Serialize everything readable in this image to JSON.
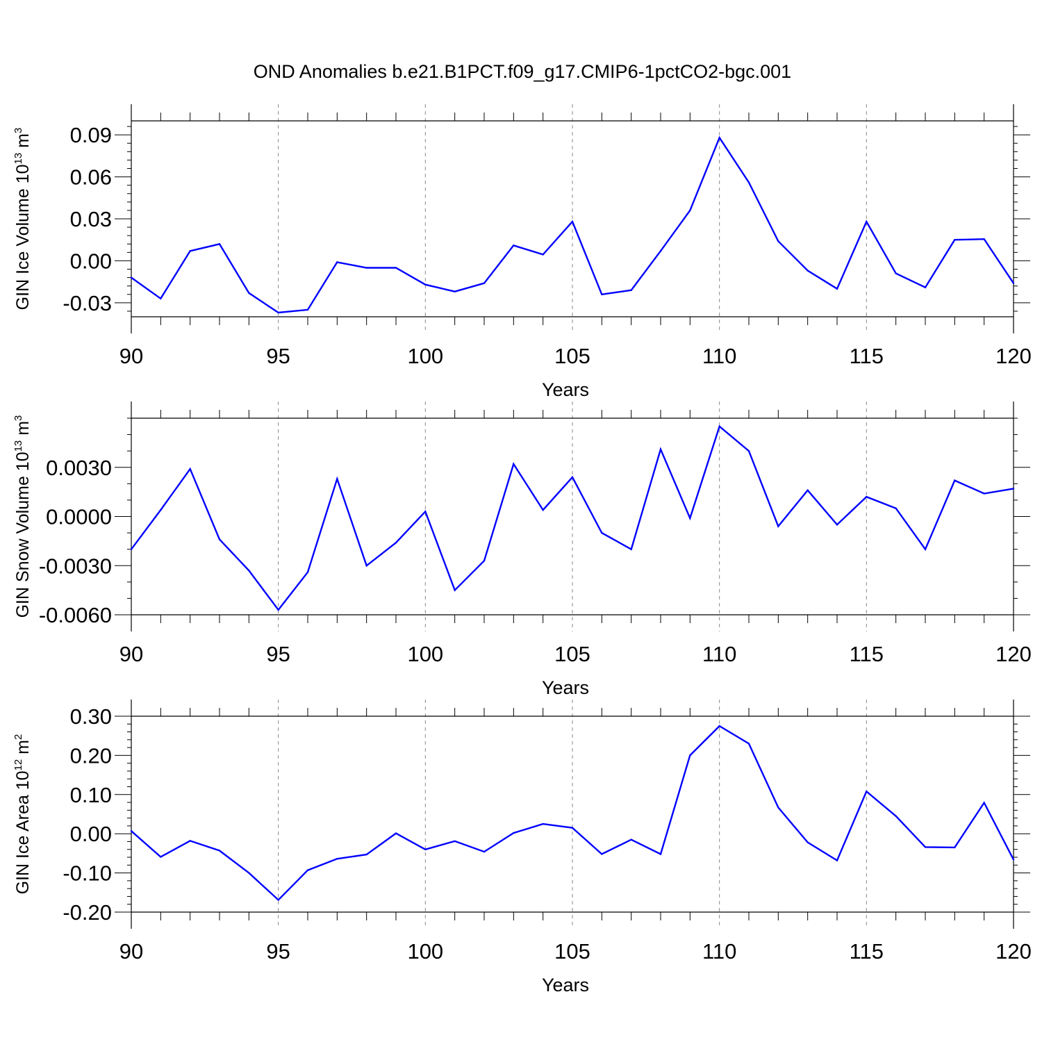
{
  "chart_data": {
    "type": "line",
    "title": "OND Anomalies b.e21.B1PCT.f09_g17.CMIP6-1pctCO2-bgc.001",
    "line_color": "#0000ff",
    "panels": [
      {
        "ylabel_main": "GIN Ice Volume 10",
        "ylabel_exp": "13",
        "ylabel_unit": " m",
        "ylabel_unit_exp": "3",
        "xlabel": "Years",
        "xlim": [
          90,
          120
        ],
        "ylim": [
          -0.04,
          0.1
        ],
        "yticks": [
          -0.03,
          0.0,
          0.03,
          0.06,
          0.09
        ],
        "ytick_labels": [
          "-0.03",
          "0.00",
          "0.03",
          "0.06",
          "0.09"
        ],
        "yminor_step": 0.006,
        "xticks": [
          90,
          95,
          100,
          105,
          110,
          115,
          120
        ],
        "xtick_labels": [
          "90",
          "95",
          "100",
          "105",
          "110",
          "115",
          "120"
        ],
        "x": [
          90,
          91,
          92,
          93,
          94,
          95,
          96,
          97,
          98,
          99,
          100,
          101,
          102,
          103,
          104,
          105,
          106,
          107,
          108,
          109,
          110,
          111,
          112,
          113,
          114,
          115,
          116,
          117,
          118,
          119,
          120
        ],
        "values": [
          -0.012,
          -0.027,
          0.007,
          0.012,
          -0.023,
          -0.037,
          -0.035,
          -0.001,
          -0.005,
          -0.005,
          -0.017,
          -0.022,
          -0.016,
          0.011,
          0.0045,
          0.028,
          -0.024,
          -0.021,
          0.007,
          0.036,
          0.088,
          0.056,
          0.014,
          -0.007,
          -0.02,
          0.028,
          -0.009,
          -0.019,
          0.015,
          0.0155,
          -0.016
        ]
      },
      {
        "ylabel_main": "GIN Snow Volume 10",
        "ylabel_exp": "13",
        "ylabel_unit": " m",
        "ylabel_unit_exp": "3",
        "xlabel": "Years",
        "xlim": [
          90,
          120
        ],
        "ylim": [
          -0.006,
          0.006
        ],
        "yticks": [
          -0.006,
          -0.003,
          0.0,
          0.003
        ],
        "ytick_labels": [
          "-0.0060",
          "-0.0030",
          "0.0000",
          "0.0030"
        ],
        "yminor_step": 0.001,
        "xticks": [
          90,
          95,
          100,
          105,
          110,
          115,
          120
        ],
        "xtick_labels": [
          "90",
          "95",
          "100",
          "105",
          "110",
          "115",
          "120"
        ],
        "x": [
          90,
          91,
          92,
          93,
          94,
          95,
          96,
          97,
          98,
          99,
          100,
          101,
          102,
          103,
          104,
          105,
          106,
          107,
          108,
          109,
          110,
          111,
          112,
          113,
          114,
          115,
          116,
          117,
          118,
          119,
          120
        ],
        "values": [
          -0.002,
          0.0004,
          0.0029,
          -0.0014,
          -0.0033,
          -0.0057,
          -0.0034,
          0.0023,
          -0.003,
          -0.0016,
          0.0003,
          -0.0045,
          -0.0027,
          0.0032,
          0.0004,
          0.0024,
          -0.001,
          -0.002,
          0.0041,
          -0.0001,
          0.0055,
          0.004,
          -0.0006,
          0.0016,
          -0.0005,
          0.0012,
          0.0005,
          -0.002,
          0.0022,
          0.0014,
          0.0017
        ]
      },
      {
        "ylabel_main": "GIN Ice Area 10",
        "ylabel_exp": "12",
        "ylabel_unit": " m",
        "ylabel_unit_exp": "2",
        "xlabel": "Years",
        "xlim": [
          90,
          120
        ],
        "ylim": [
          -0.2,
          0.3
        ],
        "yticks": [
          -0.2,
          -0.1,
          0.0,
          0.1,
          0.2,
          0.3
        ],
        "ytick_labels": [
          "-0.20",
          "-0.10",
          "0.00",
          "0.10",
          "0.20",
          "0.30"
        ],
        "yminor_step": 0.02,
        "xticks": [
          90,
          95,
          100,
          105,
          110,
          115,
          120
        ],
        "xtick_labels": [
          "90",
          "95",
          "100",
          "105",
          "110",
          "115",
          "120"
        ],
        "x": [
          90,
          91,
          92,
          93,
          94,
          95,
          96,
          97,
          98,
          99,
          100,
          101,
          102,
          103,
          104,
          105,
          106,
          107,
          108,
          109,
          110,
          111,
          112,
          113,
          114,
          115,
          116,
          117,
          118,
          119,
          120
        ],
        "values": [
          0.007,
          -0.059,
          -0.018,
          -0.043,
          -0.1,
          -0.169,
          -0.093,
          -0.064,
          -0.053,
          0.001,
          -0.04,
          -0.019,
          -0.046,
          0.002,
          0.025,
          0.015,
          -0.052,
          -0.015,
          -0.052,
          0.2,
          0.275,
          0.23,
          0.067,
          -0.022,
          -0.068,
          0.108,
          0.045,
          -0.034,
          -0.035,
          0.079,
          -0.066
        ]
      }
    ]
  }
}
